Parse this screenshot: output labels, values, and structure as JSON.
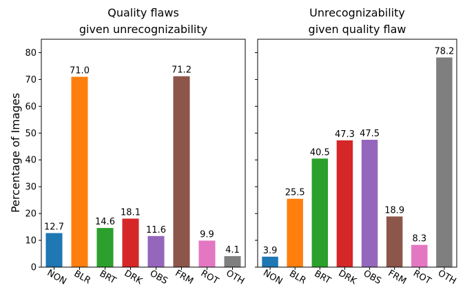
{
  "ylabel": "Percentage of Images",
  "colors": {
    "NON": "#1f77b4",
    "BLR": "#ff7f0e",
    "BRT": "#2ca02c",
    "DRK": "#d62728",
    "OBS": "#9467bd",
    "FRM": "#8c564b",
    "ROT": "#e377c2",
    "OTH": "#7f7f7f"
  },
  "chart_data": [
    {
      "type": "bar",
      "title_lines": [
        "Quality flaws",
        "given unrecognizability"
      ],
      "categories": [
        "NON",
        "BLR",
        "BRT",
        "DRK",
        "OBS",
        "FRM",
        "ROT",
        "OTH"
      ],
      "values": [
        12.7,
        71.0,
        14.6,
        18.1,
        11.6,
        71.2,
        9.9,
        4.1
      ],
      "value_labels": [
        "12.7",
        "71.0",
        "14.6",
        "18.1",
        "11.6",
        "71.2",
        "9.9",
        "4.1"
      ],
      "ylim": [
        0,
        85
      ],
      "yticks": [
        0,
        10,
        20,
        30,
        40,
        50,
        60,
        70,
        80
      ],
      "ytick_labels": [
        "0",
        "10",
        "20",
        "30",
        "40",
        "50",
        "60",
        "70",
        "80"
      ],
      "show_ytick_labels": true,
      "grid": false
    },
    {
      "type": "bar",
      "title_lines": [
        "Unrecognizability",
        "given quality flaw"
      ],
      "categories": [
        "NON",
        "BLR",
        "BRT",
        "DRK",
        "OBS",
        "FRM",
        "ROT",
        "OTH"
      ],
      "values": [
        3.9,
        25.5,
        40.5,
        47.3,
        47.5,
        18.9,
        8.3,
        78.2
      ],
      "value_labels": [
        "3.9",
        "25.5",
        "40.5",
        "47.3",
        "47.5",
        "18.9",
        "8.3",
        "78.2"
      ],
      "ylim": [
        0,
        85
      ],
      "yticks": [
        0,
        10,
        20,
        30,
        40,
        50,
        60,
        70,
        80
      ],
      "ytick_labels": [],
      "show_ytick_labels": false,
      "grid": false
    }
  ]
}
